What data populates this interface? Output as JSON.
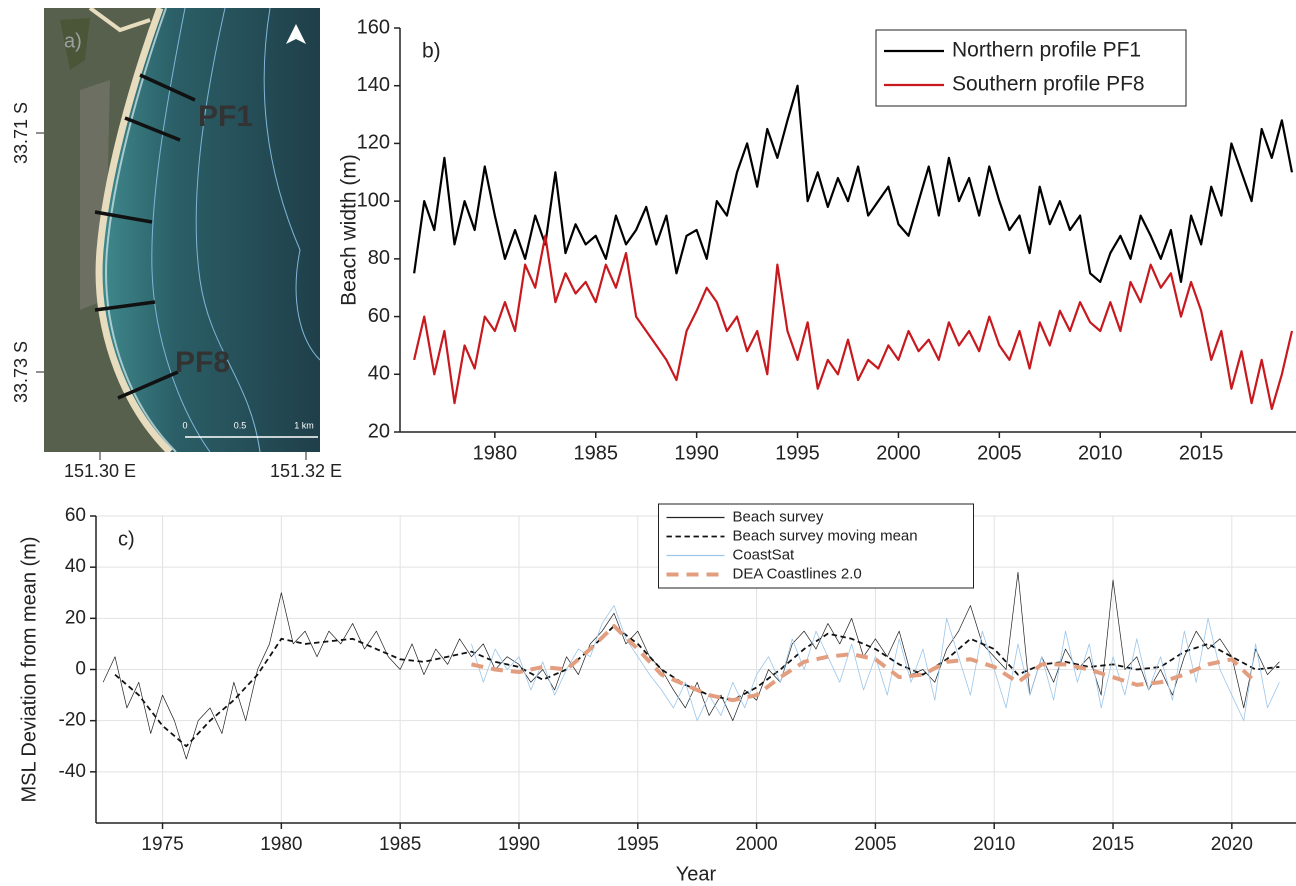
{
  "map": {
    "panel_label": "a)",
    "profile_labels": [
      "PF1",
      "PF8"
    ],
    "scale_labels": [
      "0",
      "0.5",
      "1 km"
    ],
    "lat_labels": [
      "33.71 S",
      "33.73 S"
    ],
    "lon_labels": [
      "151.30 E",
      "151.32 E"
    ]
  },
  "chart_data": [
    {
      "type": "line",
      "panel_label": "b)",
      "y_label": "Beach width (m)",
      "xlim": [
        1975.3,
        2019.7
      ],
      "xticks": [
        1980,
        1985,
        1990,
        1995,
        2000,
        2005,
        2010,
        2015
      ],
      "ylim": [
        20,
        160
      ],
      "yticks": [
        20,
        40,
        60,
        80,
        100,
        120,
        140,
        160
      ],
      "grid": false,
      "legend": "upper right",
      "x": [
        1976,
        1976.5,
        1977,
        1977.5,
        1978,
        1978.5,
        1979,
        1979.5,
        1980,
        1980.5,
        1981,
        1981.5,
        1982,
        1982.5,
        1983,
        1983.5,
        1984,
        1984.5,
        1985,
        1985.5,
        1986,
        1986.5,
        1987,
        1987.5,
        1988,
        1988.5,
        1989,
        1989.5,
        1990,
        1990.5,
        1991,
        1991.5,
        1992,
        1992.5,
        1993,
        1993.5,
        1994,
        1994.5,
        1995,
        1995.5,
        1996,
        1996.5,
        1997,
        1997.5,
        1998,
        1998.5,
        1999,
        1999.5,
        2000,
        2000.5,
        2001,
        2001.5,
        2002,
        2002.5,
        2003,
        2003.5,
        2004,
        2004.5,
        2005,
        2005.5,
        2006,
        2006.5,
        2007,
        2007.5,
        2008,
        2008.5,
        2009,
        2009.5,
        2010,
        2010.5,
        2011,
        2011.5,
        2012,
        2012.5,
        2013,
        2013.5,
        2014,
        2014.5,
        2015,
        2015.5,
        2016,
        2016.5,
        2017,
        2017.5,
        2018,
        2018.5,
        2019,
        2019.5
      ],
      "series": [
        {
          "name": "Northern profile PF1",
          "color": "#000000",
          "linewidth": 2.2,
          "linestyle": "solid",
          "values": [
            75,
            100,
            90,
            115,
            85,
            100,
            90,
            112,
            95,
            80,
            90,
            80,
            95,
            85,
            110,
            82,
            92,
            85,
            88,
            80,
            95,
            85,
            90,
            98,
            85,
            95,
            75,
            88,
            90,
            80,
            100,
            95,
            110,
            120,
            105,
            125,
            115,
            128,
            140,
            100,
            110,
            98,
            108,
            100,
            112,
            95,
            100,
            105,
            92,
            88,
            100,
            112,
            95,
            115,
            100,
            108,
            95,
            112,
            100,
            90,
            95,
            82,
            105,
            92,
            100,
            90,
            95,
            75,
            72,
            82,
            88,
            80,
            95,
            88,
            80,
            90,
            72,
            95,
            85,
            105,
            95,
            120,
            110,
            100,
            125,
            115,
            128,
            110
          ]
        },
        {
          "name": "Southern profile PF8",
          "color": "#c8191e",
          "linewidth": 2.2,
          "linestyle": "solid",
          "values": [
            45,
            60,
            40,
            55,
            30,
            50,
            42,
            60,
            55,
            65,
            55,
            78,
            70,
            88,
            65,
            75,
            68,
            72,
            65,
            78,
            70,
            82,
            60,
            55,
            50,
            45,
            38,
            55,
            62,
            70,
            65,
            55,
            60,
            48,
            55,
            40,
            78,
            55,
            45,
            58,
            35,
            45,
            40,
            52,
            38,
            45,
            42,
            50,
            45,
            55,
            48,
            52,
            45,
            58,
            50,
            55,
            48,
            60,
            50,
            45,
            55,
            42,
            58,
            50,
            62,
            55,
            65,
            58,
            55,
            65,
            55,
            72,
            65,
            78,
            70,
            75,
            60,
            72,
            62,
            45,
            55,
            35,
            48,
            30,
            45,
            28,
            40,
            55
          ]
        }
      ]
    },
    {
      "type": "line",
      "panel_label": "c)",
      "x_label": "Year",
      "y_label": "MSL Deviation from mean (m)",
      "xlim": [
        1972.2,
        2022.7
      ],
      "xticks": [
        1975,
        1980,
        1985,
        1990,
        1995,
        2000,
        2005,
        2010,
        2015,
        2020
      ],
      "ylim": [
        -60,
        60
      ],
      "yticks": [
        -40,
        -20,
        0,
        20,
        40,
        60
      ],
      "grid": true,
      "legend": "upper center",
      "series": [
        {
          "name": "Beach survey",
          "color": "#222222",
          "linewidth": 0.7,
          "linestyle": "solid",
          "x": [
            1972.5,
            1973,
            1973.5,
            1974,
            1974.5,
            1975,
            1975.5,
            1976,
            1976.5,
            1977,
            1977.5,
            1978,
            1978.5,
            1979,
            1979.5,
            1980,
            1980.5,
            1981,
            1981.5,
            1982,
            1982.5,
            1983,
            1983.5,
            1984,
            1984.5,
            1985,
            1985.5,
            1986,
            1986.5,
            1987,
            1987.5,
            1988,
            1988.5,
            1989,
            1989.5,
            1990,
            1990.5,
            1991,
            1991.5,
            1992,
            1992.5,
            1993,
            1993.5,
            1994,
            1994.5,
            1995,
            1995.5,
            1996,
            1996.5,
            1997,
            1997.5,
            1998,
            1998.5,
            1999,
            1999.5,
            2000,
            2000.5,
            2001,
            2001.5,
            2002,
            2002.5,
            2003,
            2003.5,
            2004,
            2004.5,
            2005,
            2005.5,
            2006,
            2006.5,
            2007,
            2007.5,
            2008,
            2008.5,
            2009,
            2009.5,
            2010,
            2010.5,
            2011,
            2011.5,
            2012,
            2012.5,
            2013,
            2013.5,
            2014,
            2014.5,
            2015,
            2015.5,
            2016,
            2016.5,
            2017,
            2017.5,
            2018,
            2018.5,
            2019,
            2019.5,
            2020,
            2020.5,
            2021,
            2021.5,
            2022
          ],
          "values": [
            -5,
            5,
            -15,
            -5,
            -25,
            -10,
            -20,
            -35,
            -20,
            -15,
            -25,
            -5,
            -20,
            0,
            10,
            30,
            10,
            15,
            5,
            15,
            10,
            18,
            8,
            15,
            5,
            0,
            10,
            -2,
            8,
            2,
            12,
            5,
            10,
            0,
            5,
            2,
            -5,
            0,
            -8,
            5,
            -2,
            10,
            15,
            22,
            10,
            15,
            5,
            0,
            -8,
            -15,
            -5,
            -18,
            -10,
            -20,
            -8,
            -12,
            0,
            -5,
            10,
            15,
            8,
            18,
            10,
            20,
            5,
            12,
            5,
            15,
            -2,
            0,
            -5,
            8,
            15,
            25,
            10,
            5,
            0,
            38,
            -10,
            5,
            -5,
            8,
            0,
            5,
            -10,
            35,
            0,
            5,
            -8,
            0,
            -10,
            5,
            15,
            8,
            12,
            5,
            -15,
            8,
            -2,
            3
          ]
        },
        {
          "name": "Beach survey moving mean",
          "color": "#111111",
          "linewidth": 1.8,
          "linestyle": "dashed",
          "x": [
            1973,
            1974,
            1975,
            1976,
            1977,
            1978,
            1979,
            1980,
            1981,
            1982,
            1983,
            1984,
            1985,
            1986,
            1987,
            1988,
            1989,
            1990,
            1991,
            1992,
            1993,
            1994,
            1995,
            1996,
            1997,
            1998,
            1999,
            2000,
            2001,
            2002,
            2003,
            2004,
            2005,
            2006,
            2007,
            2008,
            2009,
            2010,
            2011,
            2012,
            2013,
            2014,
            2015,
            2016,
            2017,
            2018,
            2019,
            2020,
            2021,
            2022
          ],
          "values": [
            -2,
            -10,
            -22,
            -30,
            -20,
            -12,
            -2,
            12,
            10,
            11,
            12,
            8,
            4,
            3,
            5,
            7,
            3,
            1,
            -4,
            0,
            8,
            17,
            10,
            0,
            -6,
            -10,
            -12,
            -7,
            0,
            8,
            14,
            12,
            8,
            2,
            -2,
            4,
            12,
            8,
            -2,
            2,
            3,
            1,
            2,
            0,
            1,
            7,
            10,
            5,
            0,
            1
          ]
        },
        {
          "name": "CoastSat",
          "color": "#9cc6ea",
          "linewidth": 0.8,
          "linestyle": "solid",
          "x": [
            1988,
            1988.5,
            1989,
            1989.5,
            1990,
            1990.5,
            1991,
            1991.5,
            1992,
            1992.5,
            1993,
            1993.5,
            1994,
            1994.5,
            1995,
            1995.5,
            1996,
            1996.5,
            1997,
            1997.5,
            1998,
            1998.5,
            1999,
            1999.5,
            2000,
            2000.5,
            2001,
            2001.5,
            2002,
            2002.5,
            2003,
            2003.5,
            2004,
            2004.5,
            2005,
            2005.5,
            2006,
            2006.5,
            2007,
            2007.5,
            2008,
            2008.5,
            2009,
            2009.5,
            2010,
            2010.5,
            2011,
            2011.5,
            2012,
            2012.5,
            2013,
            2013.5,
            2014,
            2014.5,
            2015,
            2015.5,
            2016,
            2016.5,
            2017,
            2017.5,
            2018,
            2018.5,
            2019,
            2019.5,
            2020,
            2020.5,
            2021,
            2021.5,
            2022
          ],
          "values": [
            10,
            -5,
            8,
            0,
            5,
            -8,
            3,
            -10,
            0,
            8,
            5,
            18,
            25,
            12,
            5,
            -2,
            -8,
            -15,
            -5,
            -20,
            -10,
            -18,
            -5,
            -15,
            -2,
            5,
            -5,
            12,
            0,
            15,
            5,
            -5,
            10,
            -8,
            5,
            -10,
            12,
            -5,
            8,
            -12,
            20,
            5,
            -10,
            15,
            0,
            -15,
            10,
            -10,
            5,
            -12,
            15,
            -5,
            10,
            -15,
            5,
            -10,
            12,
            -8,
            5,
            -12,
            15,
            -5,
            20,
            0,
            -10,
            -20,
            10,
            -15,
            -5
          ]
        },
        {
          "name": "DEA Coastlines 2.0",
          "color": "#e39e7f",
          "linewidth": 4,
          "linestyle": "dashed",
          "x": [
            1988,
            1989,
            1990,
            1991,
            1992,
            1993,
            1994,
            1995,
            1996,
            1997,
            1998,
            1999,
            2000,
            2001,
            2002,
            2003,
            2004,
            2005,
            2006,
            2007,
            2008,
            2009,
            2010,
            2011,
            2012,
            2013,
            2014,
            2015,
            2016,
            2017,
            2018,
            2019,
            2020,
            2021
          ],
          "values": [
            2,
            0,
            -1,
            1,
            0,
            8,
            17,
            8,
            -2,
            -6,
            -10,
            -12,
            -10,
            -3,
            3,
            5,
            6,
            4,
            -3,
            -2,
            3,
            4,
            1,
            -5,
            2,
            2,
            0,
            -3,
            -6,
            -5,
            -2,
            2,
            4,
            -5
          ]
        }
      ]
    }
  ]
}
